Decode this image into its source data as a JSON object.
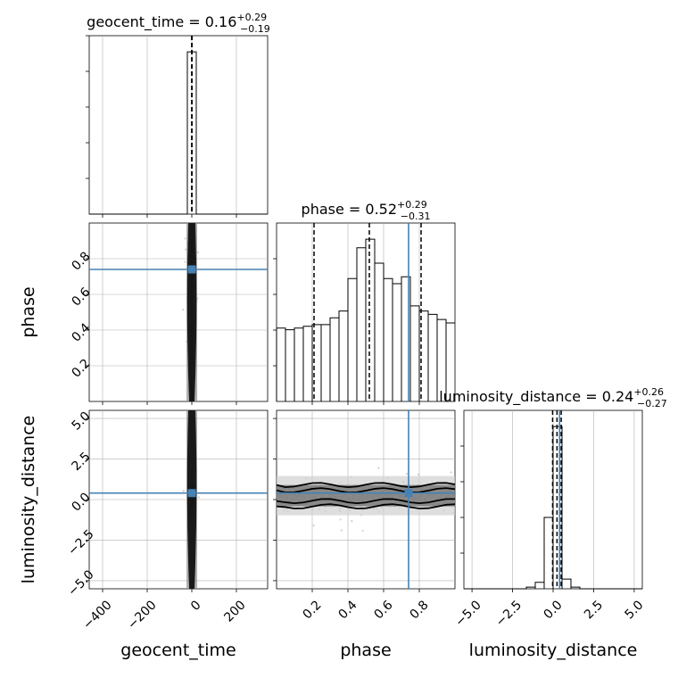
{
  "chart_data": {
    "type": "corner",
    "parameters": [
      "geocent_time",
      "phase",
      "luminosity_distance"
    ],
    "axis_labels": {
      "x": [
        "geocent_time",
        "phase",
        "luminosity_distance"
      ],
      "y": [
        "phase",
        "luminosity_distance"
      ]
    },
    "titles": [
      {
        "param": "geocent_time",
        "prefix": "geocent_time = ",
        "median": "0.16",
        "plus": "+0.29",
        "minus": "−0.19"
      },
      {
        "param": "phase",
        "prefix": "phase = ",
        "median": "0.52",
        "plus": "+0.29",
        "minus": "−0.31"
      },
      {
        "param": "luminosity_distance",
        "prefix": "luminosity_distance = ",
        "median": "0.24",
        "plus": "+0.26",
        "minus": "−0.27"
      }
    ],
    "ranges": {
      "geocent_time": [
        -460,
        340
      ],
      "phase": [
        0.0,
        1.0
      ],
      "luminosity_distance": [
        -5.5,
        5.5
      ]
    },
    "ticks": {
      "geocent_time": {
        "values": [
          -400,
          -200,
          0,
          200
        ],
        "labels": [
          "−400",
          "−200",
          "0",
          "200"
        ]
      },
      "phase": {
        "values": [
          0.2,
          0.4,
          0.6,
          0.8
        ],
        "labels": [
          "0.2",
          "0.4",
          "0.6",
          "0.8"
        ]
      },
      "luminosity_distance": {
        "values": [
          -5.0,
          -2.5,
          0.0,
          2.5,
          5.0
        ],
        "labels": [
          "−5.0",
          "−2.5",
          "0.0",
          "2.5",
          "5.0"
        ]
      }
    },
    "truths": {
      "geocent_time": null,
      "phase": 0.74,
      "luminosity_distance": 0.4
    },
    "quantiles": {
      "geocent_time": [
        -0.03,
        0.16,
        0.45
      ],
      "phase": [
        0.21,
        0.52,
        0.81
      ],
      "luminosity_distance": [
        -0.03,
        0.24,
        0.5
      ]
    },
    "histograms": {
      "geocent_time": {
        "edges": [
          -460,
          -420,
          -380,
          -340,
          -300,
          -260,
          -220,
          -180,
          -140,
          -100,
          -60,
          -20,
          20,
          60,
          100,
          140,
          180,
          220,
          260,
          300,
          340
        ],
        "counts": [
          0,
          0,
          0,
          0,
          0,
          0,
          0,
          0,
          0,
          0,
          0,
          100,
          0,
          0,
          0,
          0,
          0,
          0,
          0,
          0
        ]
      },
      "phase": {
        "edges": [
          0.0,
          0.05,
          0.1,
          0.15,
          0.2,
          0.25,
          0.3,
          0.35,
          0.4,
          0.45,
          0.5,
          0.55,
          0.6,
          0.65,
          0.7,
          0.75,
          0.8,
          0.85,
          0.9,
          0.95,
          1.0
        ],
        "counts": [
          43,
          42,
          43,
          44,
          45,
          45,
          49,
          53,
          72,
          90,
          95,
          81,
          72,
          69,
          73,
          56,
          53,
          51,
          48,
          46
        ]
      },
      "luminosity_distance": {
        "edges": [
          -5.5,
          -4.95,
          -4.4,
          -3.85,
          -3.3,
          -2.75,
          -2.2,
          -1.65,
          -1.1,
          -0.55,
          0.0,
          0.55,
          1.1,
          1.65,
          2.2,
          2.75,
          3.3,
          3.85,
          4.4,
          4.95,
          5.5
        ],
        "counts": [
          0,
          0,
          0,
          0,
          0,
          0,
          0,
          1,
          4,
          44,
          100,
          6,
          1,
          0,
          0,
          0,
          0,
          0,
          0,
          0
        ]
      }
    },
    "grid": true
  }
}
